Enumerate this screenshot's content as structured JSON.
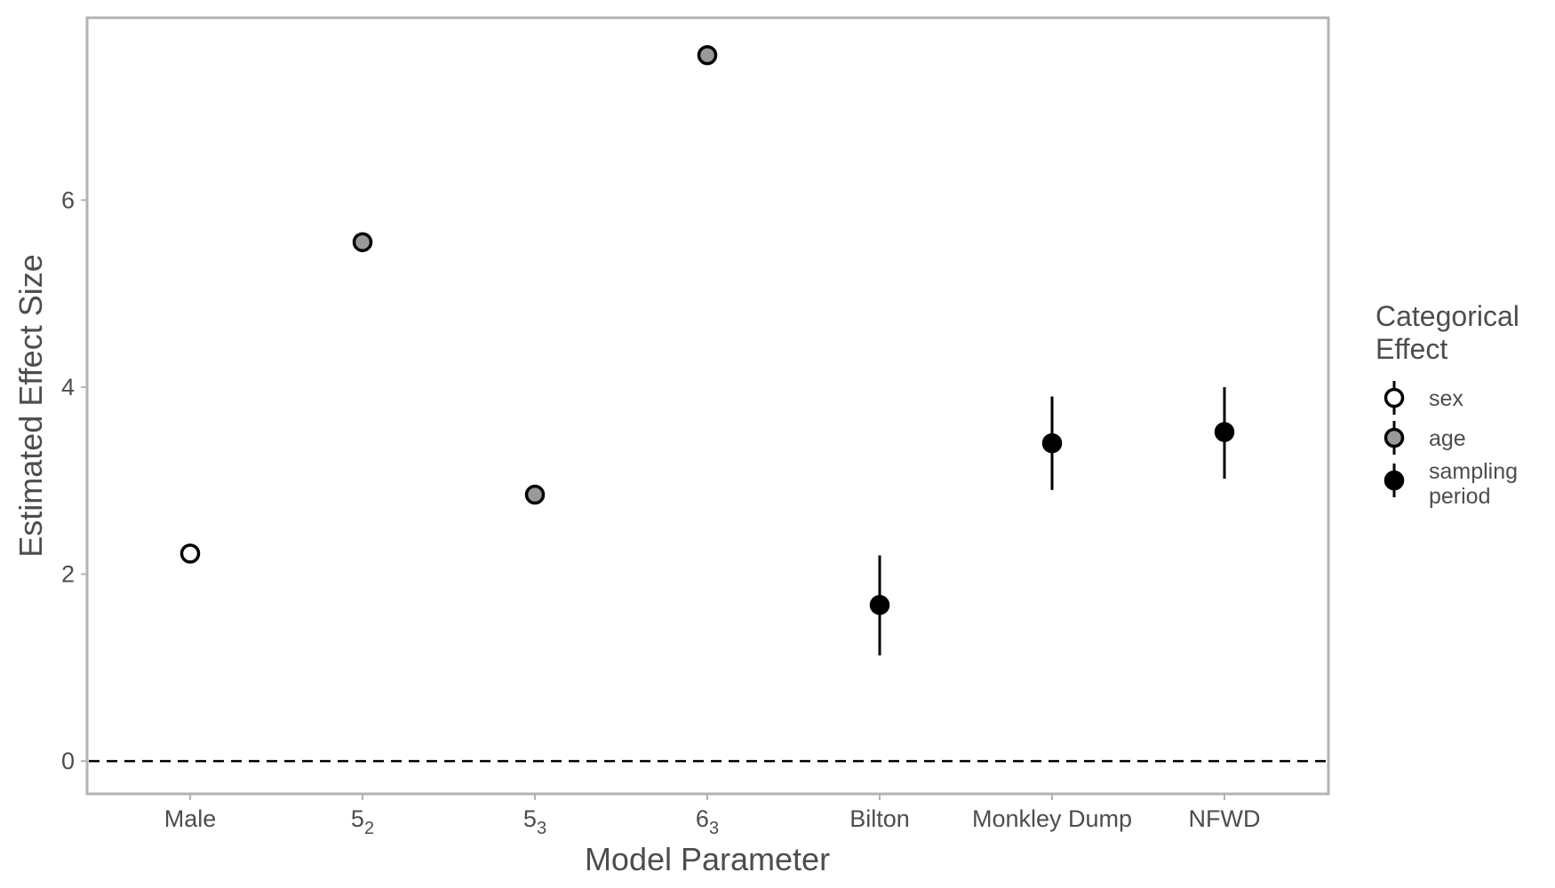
{
  "chart_data": {
    "type": "scatter",
    "title": "",
    "xlabel": "Model Parameter",
    "ylabel": "Estimated Effect Size",
    "ylim": [
      -0.35,
      7.95
    ],
    "yticks": [
      0,
      2,
      4,
      6
    ],
    "grid": false,
    "reference_line": {
      "y": 0,
      "style": "dashed"
    },
    "categories": [
      {
        "base": "Male",
        "sub": ""
      },
      {
        "base": "5",
        "sub": "2"
      },
      {
        "base": "5",
        "sub": "3"
      },
      {
        "base": "6",
        "sub": "3"
      },
      {
        "base": "Bilton",
        "sub": ""
      },
      {
        "base": "Monkley Dump",
        "sub": ""
      },
      {
        "base": "NFWD",
        "sub": ""
      }
    ],
    "points": [
      {
        "category": 0,
        "y": 2.22,
        "lower": 2.22,
        "upper": 2.22,
        "group": "sex"
      },
      {
        "category": 1,
        "y": 5.55,
        "lower": 5.55,
        "upper": 5.55,
        "group": "age"
      },
      {
        "category": 2,
        "y": 2.85,
        "lower": 2.85,
        "upper": 2.85,
        "group": "age"
      },
      {
        "category": 3,
        "y": 7.55,
        "lower": 7.55,
        "upper": 7.55,
        "group": "age"
      },
      {
        "category": 4,
        "y": 1.67,
        "lower": 1.13,
        "upper": 2.2,
        "group": "sampling period"
      },
      {
        "category": 5,
        "y": 3.4,
        "lower": 2.9,
        "upper": 3.9,
        "group": "sampling period"
      },
      {
        "category": 6,
        "y": 3.52,
        "lower": 3.02,
        "upper": 4.0,
        "group": "sampling period"
      }
    ],
    "legend": {
      "title_lines": [
        "Categorical",
        "Effect"
      ],
      "position": "right",
      "items": [
        {
          "group": "sex",
          "label_lines": [
            "sex"
          ],
          "fill": "#ffffff"
        },
        {
          "group": "age",
          "label_lines": [
            "age"
          ],
          "fill": "#999999"
        },
        {
          "group": "sampling period",
          "label_lines": [
            "sampling",
            "period"
          ],
          "fill": "#000000"
        }
      ]
    }
  }
}
